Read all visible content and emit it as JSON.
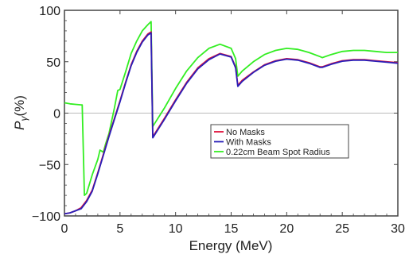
{
  "chart_data": {
    "type": "line",
    "title": "",
    "xlabel": "Energy (MeV)",
    "ylabel": "P_γ(%)",
    "ylabel_main": "P",
    "ylabel_sub": "γ",
    "ylabel_tail": "(%)",
    "xlim": [
      0,
      30
    ],
    "ylim": [
      -100,
      100
    ],
    "xticks": [
      0,
      5,
      10,
      15,
      20,
      25,
      30
    ],
    "yticks": [
      -100,
      -50,
      0,
      50,
      100
    ],
    "xtick_labels": [
      "0",
      "5",
      "10",
      "15",
      "20",
      "25",
      "30"
    ],
    "ytick_labels": [
      "−100",
      "−50",
      "0",
      "50",
      "100"
    ],
    "grid": false,
    "zero_line": true,
    "legend_position": "center-right",
    "series": [
      {
        "name": "No Masks",
        "color": "#e0103a",
        "x": [
          0,
          0.5,
          1,
          1.5,
          2,
          2.5,
          3,
          3.5,
          4,
          4.5,
          5,
          5.5,
          6,
          6.5,
          7,
          7.5,
          7.8,
          7.95,
          9,
          10,
          11,
          12,
          13,
          14,
          15,
          15.4,
          15.6,
          16,
          17,
          18,
          19,
          20,
          21,
          22,
          23,
          23.2,
          24,
          25,
          26,
          27,
          28,
          29,
          30
        ],
        "y": [
          -98,
          -97,
          -95,
          -92,
          -85,
          -75,
          -58,
          -40,
          -22,
          -5,
          12,
          30,
          47,
          60,
          70,
          77,
          79,
          -23,
          -5,
          13,
          30,
          44,
          53,
          58,
          55,
          45,
          27,
          32,
          40,
          47,
          51,
          53,
          52,
          49,
          45,
          45,
          48,
          51,
          52,
          52,
          51,
          50,
          49
        ]
      },
      {
        "name": "With Masks",
        "color": "#2a1fb8",
        "x": [
          0,
          0.5,
          1,
          1.5,
          2,
          2.5,
          3,
          3.5,
          4,
          4.5,
          5,
          5.5,
          6,
          6.5,
          7,
          7.5,
          7.8,
          7.95,
          9,
          10,
          11,
          12,
          13,
          14,
          15,
          15.4,
          15.6,
          16,
          17,
          18,
          19,
          20,
          21,
          22,
          23,
          23.2,
          24,
          25,
          26,
          27,
          28,
          29,
          30
        ],
        "y": [
          -98,
          -97,
          -95,
          -93,
          -86,
          -76,
          -59,
          -41,
          -23,
          -6,
          11,
          29,
          46,
          59,
          69,
          76,
          78,
          -24,
          -6,
          12,
          29,
          43,
          52,
          57.5,
          54.5,
          44,
          26,
          31,
          39.5,
          46.5,
          50.5,
          52.5,
          51.5,
          48.5,
          44.5,
          44.5,
          47.5,
          50.5,
          51.5,
          51.5,
          50.5,
          49.5,
          48.5
        ]
      },
      {
        "name": "0.22cm Beam Spot Radius",
        "color": "#33ee22",
        "x": [
          0,
          0.5,
          1,
          1.5,
          1.6,
          1.8,
          2,
          2.5,
          3,
          3.2,
          3.5,
          3.7,
          4,
          4.5,
          4.8,
          5,
          5.5,
          6,
          6.5,
          7,
          7.5,
          7.8,
          7.95,
          9,
          10,
          11,
          12,
          13,
          14,
          15,
          15.4,
          15.6,
          16,
          17,
          18,
          19,
          20,
          21,
          22,
          23,
          23.2,
          24,
          25,
          26,
          27,
          28,
          29,
          30
        ],
        "y": [
          10,
          9,
          8.5,
          8,
          8,
          -80,
          -78,
          -60,
          -45,
          -36,
          -38,
          -30,
          -20,
          5,
          22,
          23,
          40,
          58,
          70,
          80,
          86,
          89,
          -13,
          5,
          24,
          41,
          54,
          63,
          67,
          63,
          53,
          36,
          41,
          50,
          57,
          61,
          63,
          62,
          59,
          55,
          54,
          57,
          60,
          61,
          61,
          60,
          59,
          59
        ]
      }
    ]
  }
}
